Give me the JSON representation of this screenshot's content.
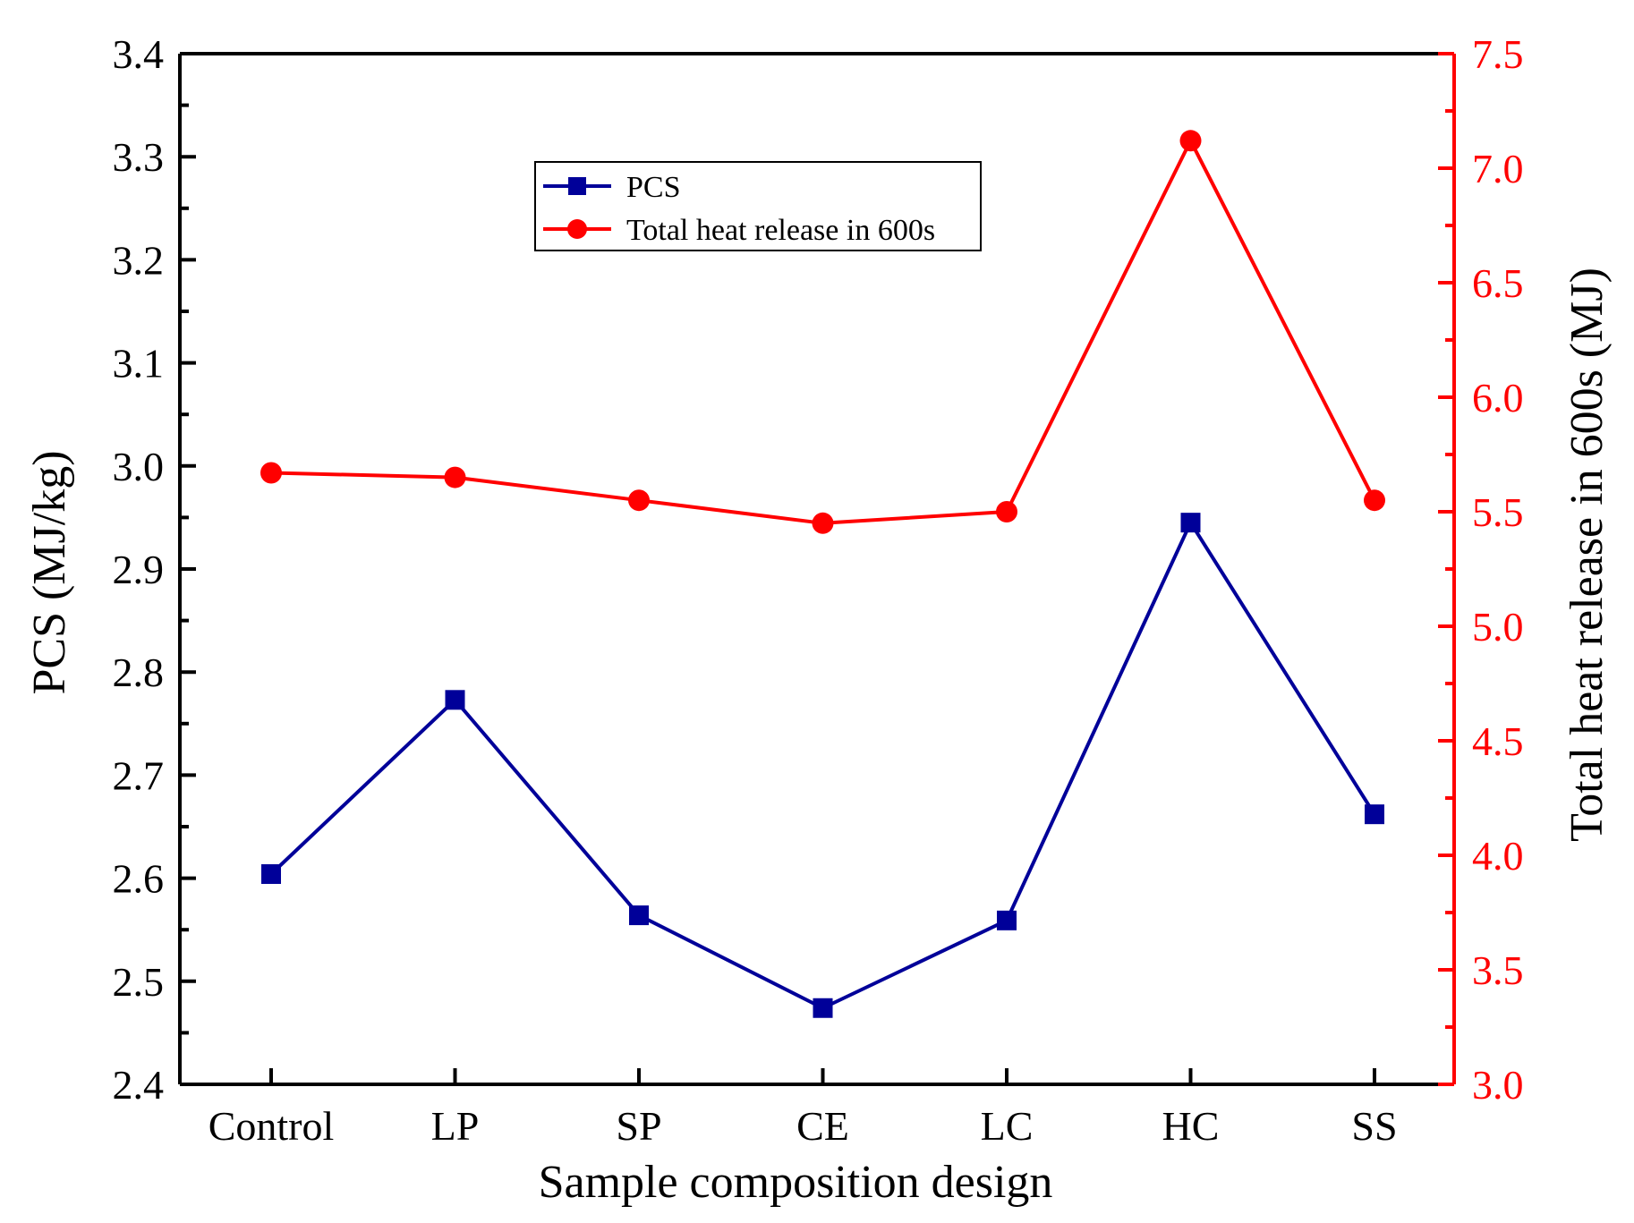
{
  "chart_data": {
    "type": "line",
    "categories": [
      "Control",
      "LP",
      "SP",
      "CE",
      "LC",
      "HC",
      "SS"
    ],
    "xlabel": "Sample composition design",
    "y_left": {
      "label": "PCS (MJ/kg)",
      "lim": [
        2.4,
        3.4
      ],
      "ticks": [
        "2.4",
        "2.5",
        "2.6",
        "2.7",
        "2.8",
        "2.9",
        "3.0",
        "3.1",
        "3.2",
        "3.3",
        "3.4"
      ],
      "color": "#000000"
    },
    "y_right": {
      "label": "Total heat release in 600s (MJ)",
      "lim": [
        3.0,
        7.5
      ],
      "ticks": [
        "3.0",
        "3.5",
        "4.0",
        "4.5",
        "5.0",
        "5.5",
        "6.0",
        "6.5",
        "7.0",
        "7.5"
      ],
      "color": "#ff0000"
    },
    "series": [
      {
        "name": "PCS",
        "axis": "left",
        "marker": "square",
        "color": "#000099",
        "values": [
          2.604,
          2.773,
          2.564,
          2.474,
          2.559,
          2.945,
          2.662
        ]
      },
      {
        "name": "Total heat release in 600s",
        "axis": "right",
        "marker": "circle",
        "color": "#ff0000",
        "values": [
          5.67,
          5.65,
          5.55,
          5.45,
          5.5,
          7.12,
          5.55
        ]
      }
    ],
    "legend": {
      "position": "top-center"
    }
  }
}
